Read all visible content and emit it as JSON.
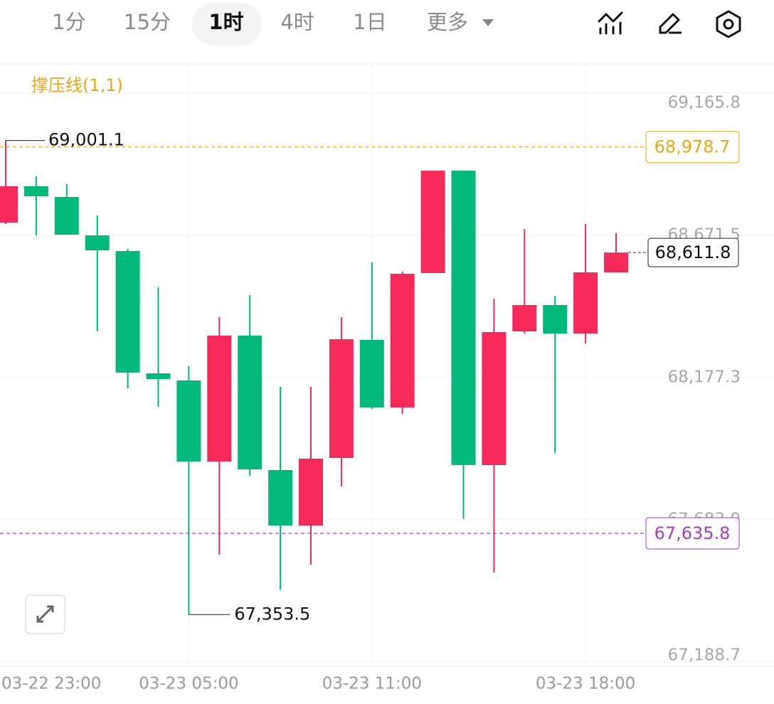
{
  "toolbar": {
    "tabs": [
      "1分",
      "15分",
      "1时",
      "4时",
      "1日"
    ],
    "selected_tab": 2,
    "more": "更多"
  },
  "chart_data": {
    "type": "candlestick",
    "indicator": "撑压线(1,1)",
    "categories": [
      "03-22 23:00",
      null,
      null,
      null,
      null,
      null,
      "03-23 05:00",
      null,
      null,
      null,
      null,
      null,
      "03-23 11:00",
      null,
      null,
      null,
      null,
      null,
      null,
      "03-23 18:00",
      null
    ],
    "open": [
      68716.0,
      68842.0,
      68805.0,
      68671.5,
      68617.1,
      68192.0,
      68167.3,
      67885.5,
      68323.0,
      67855.9,
      67663.1,
      67897.9,
      68308.2,
      68073.4,
      68540.5,
      68896.4,
      67873.2,
      68337.8,
      68429.3,
      68330.4,
      68543.0
    ],
    "high": [
      69001.1,
      68876.6,
      68849.5,
      68740.7,
      68624.5,
      68491.1,
      68216.7,
      68387.3,
      68463.9,
      68145.0,
      68145.0,
      68387.3,
      68577.6,
      68545.4,
      68896.4,
      68896.4,
      68451.5,
      68693.7,
      68461.4,
      68711.0,
      68678.9
    ],
    "low": [
      68711.0,
      68671.5,
      68674.0,
      68337.8,
      68140.1,
      68075.8,
      67353.5,
      67561.8,
      67836.1,
      67440.6,
      67527.2,
      67799.0,
      68068.4,
      68051.1,
      68540.5,
      67685.3,
      67500.0,
      68330.4,
      67915.2,
      68295.8,
      68543.0
    ],
    "close": [
      68842.0,
      68807.4,
      68674.0,
      68619.6,
      68194.5,
      68172.2,
      67885.5,
      68323.0,
      67858.3,
      67663.1,
      67895.4,
      68310.6,
      68073.4,
      68538.0,
      68896.4,
      67873.2,
      68335.4,
      68429.3,
      68330.4,
      68543.0,
      68611.8
    ],
    "up_color": "#f5295a",
    "down_color": "#00b97a",
    "ylim": [
      67173.7,
      69267.1
    ],
    "yticks": [
      {
        "value": 69165.8,
        "label": "69,165.8"
      },
      {
        "value": 68671.5,
        "label": "68,671.5"
      },
      {
        "value": 68177.3,
        "label": "68,177.3"
      },
      {
        "value": 67683.0,
        "label": "67,683.0"
      },
      {
        "value": 67188.7,
        "label": "67,188.7"
      }
    ],
    "grid": true,
    "price_lines": [
      {
        "value": 68978.7,
        "label": "68,978.7",
        "color": "#e6a817"
      },
      {
        "value": 67635.8,
        "label": "67,635.8",
        "color": "#a63fc4"
      }
    ],
    "current_price": {
      "value": 68611.8,
      "label": "68,611.8"
    },
    "max_label": "69,001.1",
    "min_label": "67,353.5"
  }
}
